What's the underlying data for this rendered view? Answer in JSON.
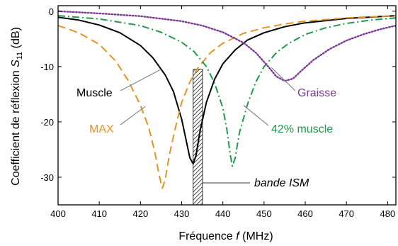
{
  "chart_data": {
    "type": "line",
    "xlabel": "Fréquence f (MHz)",
    "xlabel_parts": {
      "prefix": "Fréquence ",
      "var": "f",
      "suffix": " (MHz)"
    },
    "ylabel": "Coefficient de réflexion S11 (dB)",
    "ylabel_parts": {
      "prefix": "Coefficient de réflexion ",
      "var": "S",
      "sub": "11",
      "suffix": " (dB)"
    },
    "xlim": [
      400,
      482
    ],
    "ylim": [
      -35,
      1
    ],
    "xticks": [
      400,
      410,
      420,
      430,
      440,
      450,
      460,
      470,
      480
    ],
    "yticks": [
      0,
      -10,
      -20,
      -30
    ],
    "grid": false,
    "series": [
      {
        "name": "Muscle",
        "color": "#000000",
        "style": "solid",
        "points": [
          [
            400,
            -1.1
          ],
          [
            405,
            -1.6
          ],
          [
            410,
            -2.5
          ],
          [
            415,
            -3.9
          ],
          [
            420,
            -6.2
          ],
          [
            423,
            -8.4
          ],
          [
            426,
            -11.5
          ],
          [
            428,
            -14.5
          ],
          [
            430,
            -19.5
          ],
          [
            431,
            -23.0
          ],
          [
            432,
            -26.5
          ],
          [
            432.8,
            -27.6
          ],
          [
            433.5,
            -26.0
          ],
          [
            434.5,
            -21.5
          ],
          [
            436,
            -16.5
          ],
          [
            438,
            -12.3
          ],
          [
            440,
            -9.5
          ],
          [
            443,
            -7.0
          ],
          [
            446,
            -5.2
          ],
          [
            450,
            -3.9
          ],
          [
            455,
            -2.8
          ],
          [
            460,
            -2.1
          ],
          [
            470,
            -1.3
          ],
          [
            482,
            -0.8
          ]
        ]
      },
      {
        "name": "MAX",
        "color": "#E8931E",
        "style": "dashed",
        "points": [
          [
            400,
            -2.6
          ],
          [
            405,
            -3.9
          ],
          [
            410,
            -6.0
          ],
          [
            414,
            -9.0
          ],
          [
            417,
            -12.5
          ],
          [
            420,
            -17.0
          ],
          [
            422,
            -21.0
          ],
          [
            423.5,
            -25.5
          ],
          [
            424.5,
            -29.5
          ],
          [
            425.3,
            -32.0
          ],
          [
            426,
            -30.5
          ],
          [
            427,
            -26.0
          ],
          [
            428.5,
            -21.0
          ],
          [
            430,
            -16.5
          ],
          [
            432,
            -12.8
          ],
          [
            434,
            -10.2
          ],
          [
            437,
            -7.5
          ],
          [
            440,
            -5.8
          ],
          [
            445,
            -4.0
          ],
          [
            450,
            -3.0
          ],
          [
            455,
            -2.3
          ],
          [
            460,
            -1.8
          ],
          [
            470,
            -1.2
          ],
          [
            482,
            -0.8
          ]
        ]
      },
      {
        "name": "42% muscle",
        "color": "#1E9A4A",
        "style": "dashdot",
        "points": [
          [
            400,
            -0.8
          ],
          [
            410,
            -1.4
          ],
          [
            420,
            -2.6
          ],
          [
            425,
            -3.8
          ],
          [
            430,
            -5.6
          ],
          [
            433,
            -7.3
          ],
          [
            436,
            -10.0
          ],
          [
            438,
            -13.0
          ],
          [
            440,
            -17.5
          ],
          [
            441,
            -21.5
          ],
          [
            441.8,
            -26.0
          ],
          [
            442.3,
            -28.0
          ],
          [
            443,
            -26.5
          ],
          [
            444,
            -22.0
          ],
          [
            446,
            -16.8
          ],
          [
            448,
            -12.8
          ],
          [
            450,
            -10.0
          ],
          [
            453,
            -7.5
          ],
          [
            456,
            -5.8
          ],
          [
            460,
            -4.2
          ],
          [
            465,
            -3.0
          ],
          [
            470,
            -2.2
          ],
          [
            476,
            -1.6
          ],
          [
            482,
            -1.2
          ]
        ]
      },
      {
        "name": "Graisse",
        "color": "#7B3A96",
        "style": "dotted",
        "points": [
          [
            400,
            0
          ],
          [
            410,
            -0.4
          ],
          [
            420,
            -0.9
          ],
          [
            430,
            -1.8
          ],
          [
            435,
            -2.6
          ],
          [
            440,
            -3.8
          ],
          [
            445,
            -5.7
          ],
          [
            448,
            -7.5
          ],
          [
            451,
            -10.0
          ],
          [
            453,
            -11.8
          ],
          [
            455,
            -12.6
          ],
          [
            457,
            -12.2
          ],
          [
            459,
            -10.8
          ],
          [
            462,
            -8.8
          ],
          [
            466,
            -6.8
          ],
          [
            470,
            -5.3
          ],
          [
            474,
            -4.2
          ],
          [
            478,
            -3.3
          ],
          [
            482,
            -2.6
          ]
        ]
      }
    ],
    "band": {
      "name": "bande ISM",
      "x": [
        433.05,
        434.79
      ],
      "ylim": [
        -35,
        -10.5
      ]
    },
    "annotations": [
      {
        "text": "Muscle",
        "color": "#000000",
        "italic": false
      },
      {
        "text": "MAX",
        "color": "#E8931E",
        "italic": false
      },
      {
        "text": "42% muscle",
        "color": "#1E9A4A",
        "italic": false
      },
      {
        "text": "Graisse",
        "color": "#7B3A96",
        "italic": false
      },
      {
        "text": "bande ISM",
        "color": "#000000",
        "italic": true
      }
    ]
  }
}
